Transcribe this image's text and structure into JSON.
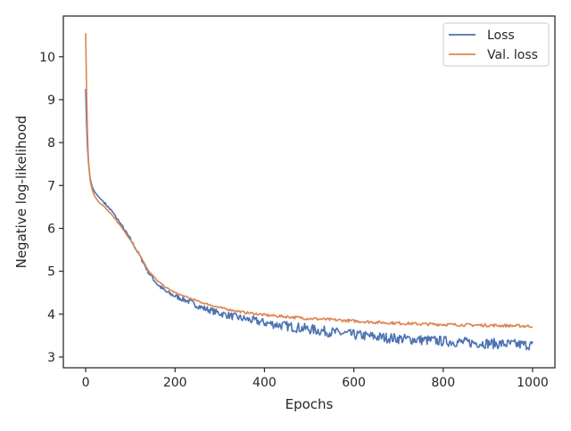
{
  "chart_data": {
    "type": "line",
    "title": "",
    "xlabel": "Epochs",
    "ylabel": "Negative log-likelihood",
    "xlim": [
      -50,
      1050
    ],
    "ylim": [
      2.75,
      10.95
    ],
    "xticks": [
      0,
      200,
      400,
      600,
      800,
      1000
    ],
    "yticks": [
      3,
      4,
      5,
      6,
      7,
      8,
      9,
      10
    ],
    "grid": false,
    "legend": "top-right",
    "series": [
      {
        "name": "Loss",
        "color": "#4c72b0",
        "x": [
          0,
          3,
          6,
          10,
          15,
          20,
          30,
          40,
          60,
          80,
          100,
          120,
          140,
          160,
          180,
          200,
          230,
          260,
          300,
          350,
          400,
          450,
          500,
          550,
          600,
          650,
          700,
          750,
          800,
          850,
          900,
          950,
          1000
        ],
        "y": [
          9.25,
          8.1,
          7.55,
          7.15,
          6.95,
          6.85,
          6.72,
          6.62,
          6.38,
          6.08,
          5.75,
          5.38,
          4.98,
          4.7,
          4.52,
          4.42,
          4.3,
          4.15,
          4.02,
          3.9,
          3.8,
          3.72,
          3.65,
          3.58,
          3.52,
          3.47,
          3.43,
          3.4,
          3.37,
          3.34,
          3.32,
          3.3,
          3.28
        ]
      },
      {
        "name": "Val. loss",
        "color": "#dd8452",
        "x": [
          0,
          3,
          6,
          10,
          15,
          20,
          30,
          40,
          60,
          80,
          100,
          120,
          140,
          160,
          180,
          200,
          230,
          260,
          300,
          350,
          400,
          450,
          500,
          550,
          600,
          650,
          700,
          750,
          800,
          850,
          900,
          950,
          1000
        ],
        "y": [
          10.55,
          8.6,
          7.6,
          7.1,
          6.88,
          6.75,
          6.6,
          6.52,
          6.3,
          6.03,
          5.73,
          5.4,
          5.02,
          4.78,
          4.62,
          4.5,
          4.38,
          4.27,
          4.15,
          4.05,
          3.98,
          3.94,
          3.9,
          3.87,
          3.84,
          3.81,
          3.79,
          3.77,
          3.76,
          3.75,
          3.74,
          3.73,
          3.72
        ]
      }
    ]
  }
}
